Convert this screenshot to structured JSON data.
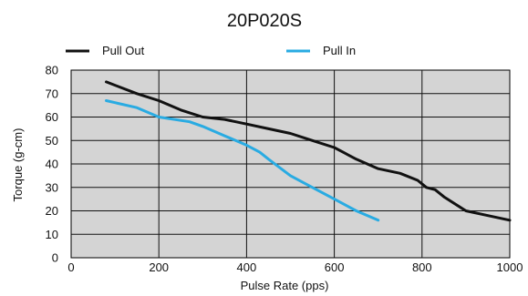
{
  "chart_data": {
    "type": "line",
    "title": "20P020S",
    "xlabel": "Pulse Rate (pps)",
    "ylabel": "Torque (g-cm)",
    "xlim": [
      0,
      1000
    ],
    "ylim": [
      0,
      80
    ],
    "xticks": [
      0,
      200,
      400,
      600,
      800,
      1000
    ],
    "yticks": [
      0,
      10,
      20,
      30,
      40,
      50,
      60,
      70,
      80
    ],
    "grid": true,
    "legend_position": "top",
    "series": [
      {
        "name": "Pull Out",
        "color": "#111111",
        "x": [
          80,
          150,
          200,
          250,
          300,
          350,
          400,
          450,
          500,
          550,
          600,
          620,
          650,
          700,
          750,
          790,
          810,
          830,
          850,
          900,
          950,
          1000
        ],
        "y": [
          75,
          70,
          67,
          63,
          60,
          59,
          57,
          55,
          53,
          50,
          47,
          45,
          42,
          38,
          36,
          33,
          30,
          29,
          26,
          20,
          18,
          16
        ]
      },
      {
        "name": "Pull In",
        "color": "#29abe2",
        "x": [
          80,
          150,
          200,
          270,
          300,
          350,
          400,
          430,
          450,
          500,
          550,
          600,
          650,
          700
        ],
        "y": [
          67,
          64,
          60,
          58,
          56,
          52,
          48,
          45,
          42,
          35,
          30,
          25,
          20,
          16
        ]
      }
    ]
  }
}
